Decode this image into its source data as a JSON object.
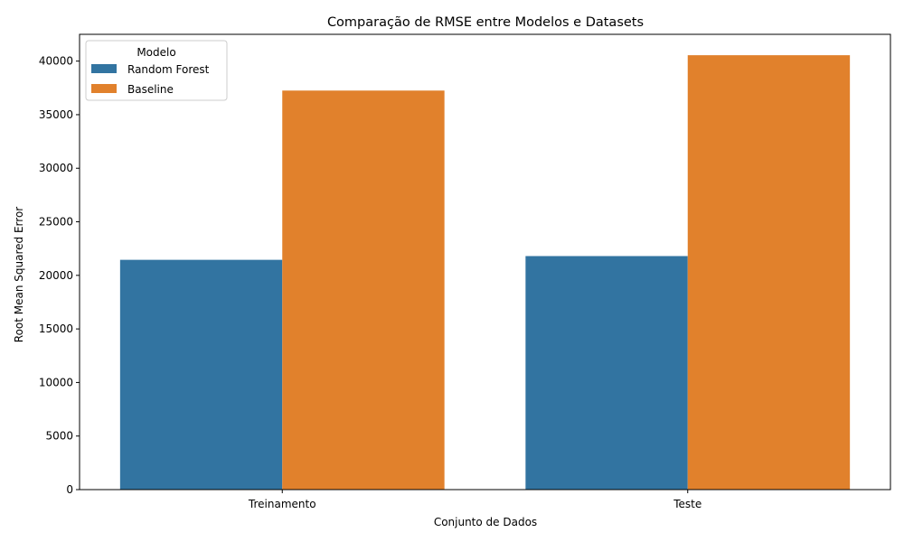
{
  "chart_data": {
    "type": "bar",
    "title": "Comparação de RMSE entre Modelos e Datasets",
    "xlabel": "Conjunto de Dados",
    "ylabel": "Root Mean Squared Error",
    "categories": [
      "Treinamento",
      "Teste"
    ],
    "series": [
      {
        "name": "Random Forest",
        "values": [
          21450,
          21800
        ],
        "color": "#3274a1"
      },
      {
        "name": "Baseline",
        "values": [
          37250,
          40550
        ],
        "color": "#e1812c"
      }
    ],
    "ylim": [
      0,
      42500
    ],
    "yticks": [
      0,
      5000,
      10000,
      15000,
      20000,
      25000,
      30000,
      35000,
      40000
    ],
    "legend": {
      "title": "Modelo",
      "placement": "top-left"
    },
    "grid": false
  }
}
